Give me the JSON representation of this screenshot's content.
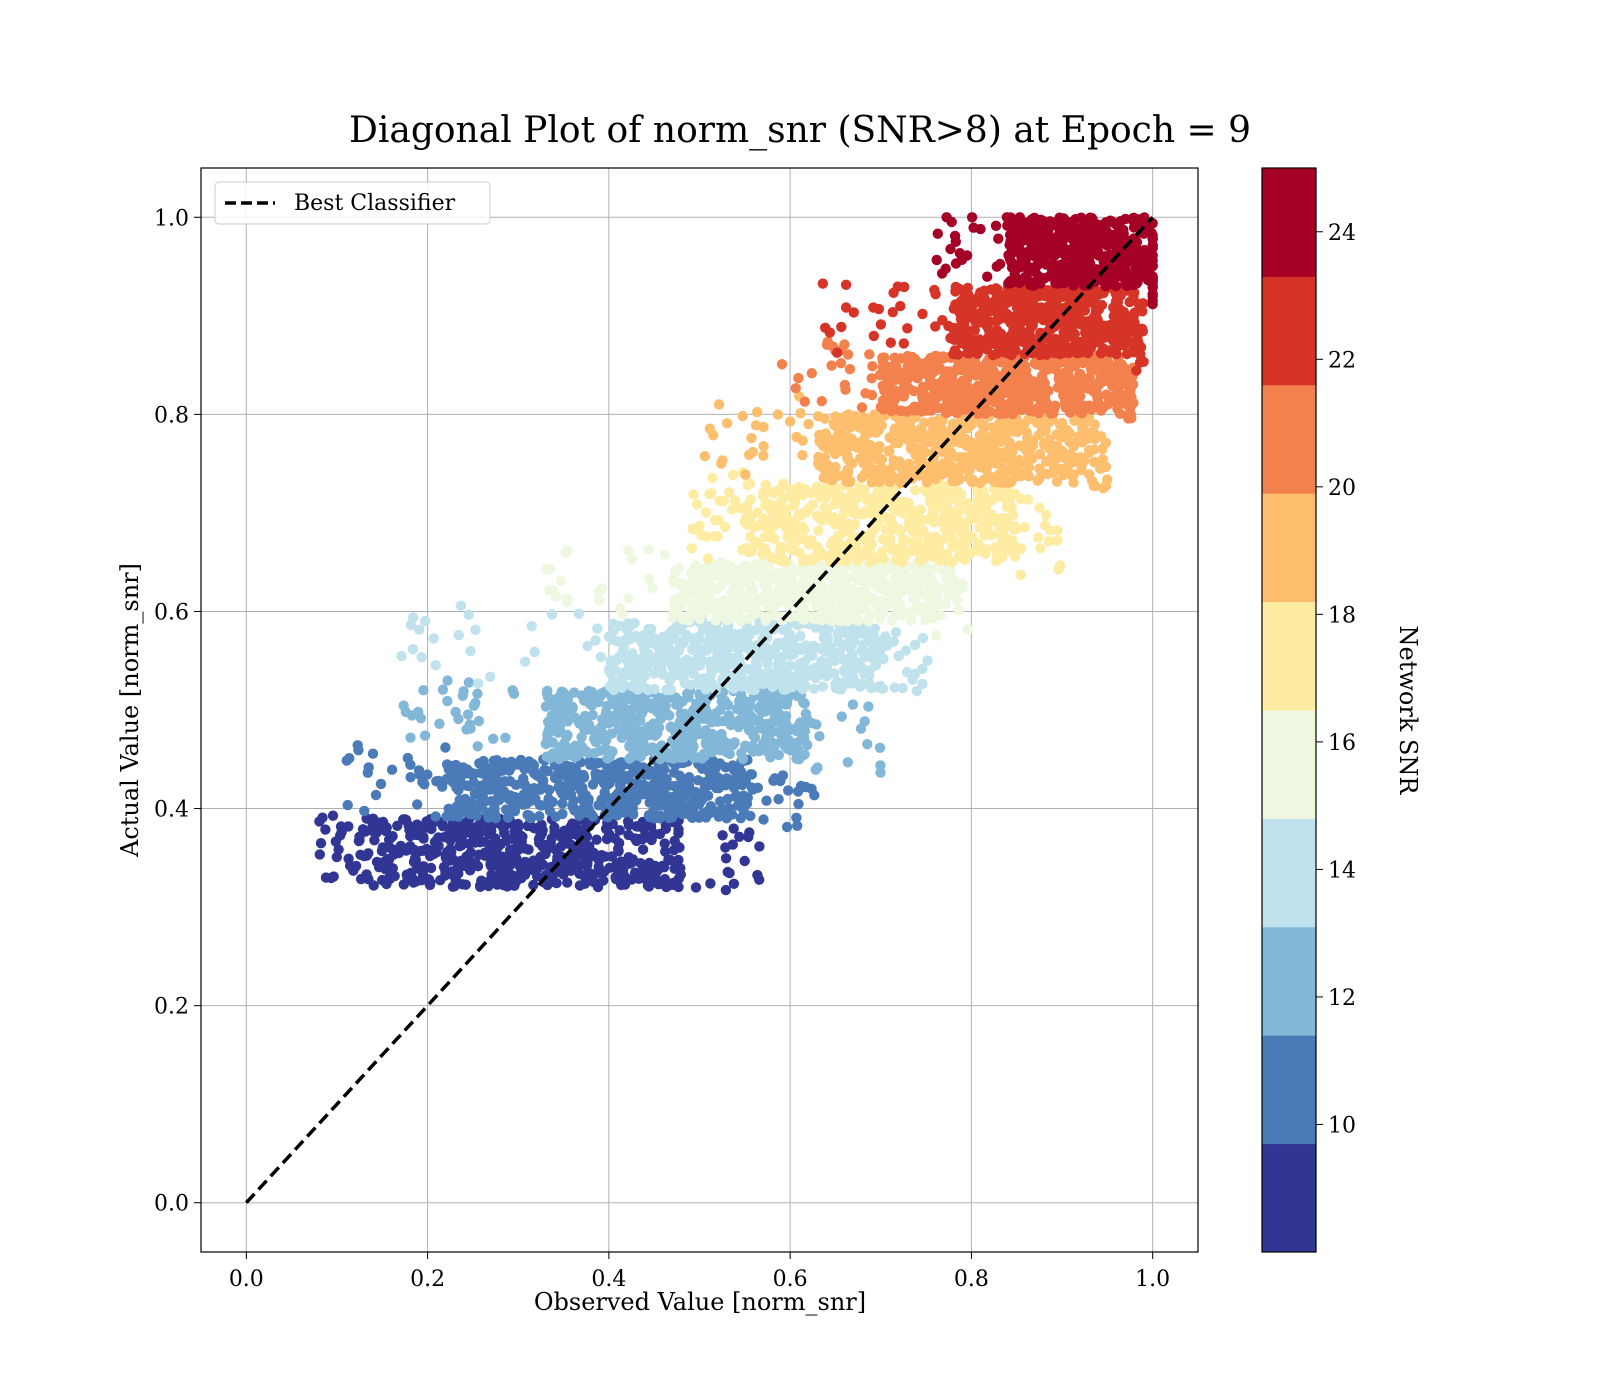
{
  "chart_data": {
    "type": "scatter",
    "title": "Diagonal Plot of norm_snr (SNR>8) at Epoch = 9",
    "xlabel": "Observed Value [norm_snr]",
    "ylabel": "Actual Value [norm_snr]",
    "xlim": [
      -0.05,
      1.05
    ],
    "ylim": [
      -0.05,
      1.05
    ],
    "xticks": [
      "0.0",
      "0.2",
      "0.4",
      "0.6",
      "0.8",
      "1.0"
    ],
    "yticks": [
      "0.0",
      "0.2",
      "0.4",
      "0.6",
      "0.8",
      "1.0"
    ],
    "grid": true,
    "legend": {
      "placement": "top-left",
      "entries": [
        "Best Classifier"
      ]
    },
    "reference_line": {
      "name": "Best Classifier",
      "style": "dashed",
      "color": "#000000",
      "x": [
        0.0,
        1.0
      ],
      "y": [
        0.0,
        1.0
      ]
    },
    "colorbar": {
      "label": "Network SNR",
      "ticks": [
        "10",
        "12",
        "14",
        "16",
        "18",
        "20",
        "22",
        "24"
      ],
      "range": [
        8,
        25
      ],
      "levels": [
        {
          "from": 8.0,
          "to": 9.7,
          "color": "#313695"
        },
        {
          "from": 9.7,
          "to": 11.4,
          "color": "#4a7ab7"
        },
        {
          "from": 11.4,
          "to": 13.1,
          "color": "#83b7d7"
        },
        {
          "from": 13.1,
          "to": 14.8,
          "color": "#bfe2ed"
        },
        {
          "from": 14.8,
          "to": 16.5,
          "color": "#eef7e0"
        },
        {
          "from": 16.5,
          "to": 18.2,
          "color": "#fdeca2"
        },
        {
          "from": 18.2,
          "to": 19.9,
          "color": "#fdbe6e"
        },
        {
          "from": 19.9,
          "to": 21.6,
          "color": "#f3814d"
        },
        {
          "from": 21.6,
          "to": 23.3,
          "color": "#d73428"
        },
        {
          "from": 23.3,
          "to": 25.0,
          "color": "#a50026"
        }
      ]
    },
    "bands": [
      {
        "snr": 8.9,
        "y": [
          0.32,
          0.39
        ],
        "core_x": [
          0.13,
          0.48
        ],
        "spread_x": [
          0.08,
          0.57
        ],
        "color": "#313695"
      },
      {
        "snr": 10.5,
        "y": [
          0.39,
          0.45
        ],
        "core_x": [
          0.22,
          0.56
        ],
        "spread_x": [
          0.11,
          0.63
        ],
        "color": "#4a7ab7"
      },
      {
        "snr": 12.2,
        "y": [
          0.45,
          0.52
        ],
        "core_x": [
          0.33,
          0.62
        ],
        "spread_x": [
          0.16,
          0.7
        ],
        "color": "#83b7d7"
      },
      {
        "snr": 13.9,
        "y": [
          0.52,
          0.59
        ],
        "core_x": [
          0.4,
          0.7
        ],
        "spread_x": [
          0.17,
          0.76
        ],
        "color": "#bfe2ed"
      },
      {
        "snr": 15.6,
        "y": [
          0.59,
          0.65
        ],
        "core_x": [
          0.47,
          0.76
        ],
        "spread_x": [
          0.32,
          0.8
        ],
        "color": "#eef7e0"
      },
      {
        "snr": 17.3,
        "y": [
          0.65,
          0.73
        ],
        "core_x": [
          0.55,
          0.85
        ],
        "spread_x": [
          0.49,
          0.9
        ],
        "color": "#fdeca2"
      },
      {
        "snr": 19.0,
        "y": [
          0.73,
          0.8
        ],
        "core_x": [
          0.63,
          0.93
        ],
        "spread_x": [
          0.5,
          0.95
        ],
        "color": "#fdbe6e"
      },
      {
        "snr": 20.7,
        "y": [
          0.8,
          0.86
        ],
        "core_x": [
          0.7,
          0.97
        ],
        "spread_x": [
          0.58,
          0.98
        ],
        "color": "#f3814d"
      },
      {
        "snr": 22.4,
        "y": [
          0.86,
          0.93
        ],
        "core_x": [
          0.78,
          0.98
        ],
        "spread_x": [
          0.63,
          0.99
        ],
        "color": "#d73428"
      },
      {
        "snr": 24.1,
        "y": [
          0.93,
          1.0
        ],
        "core_x": [
          0.84,
          1.0
        ],
        "spread_x": [
          0.76,
          1.0
        ],
        "color": "#a50026"
      }
    ]
  }
}
